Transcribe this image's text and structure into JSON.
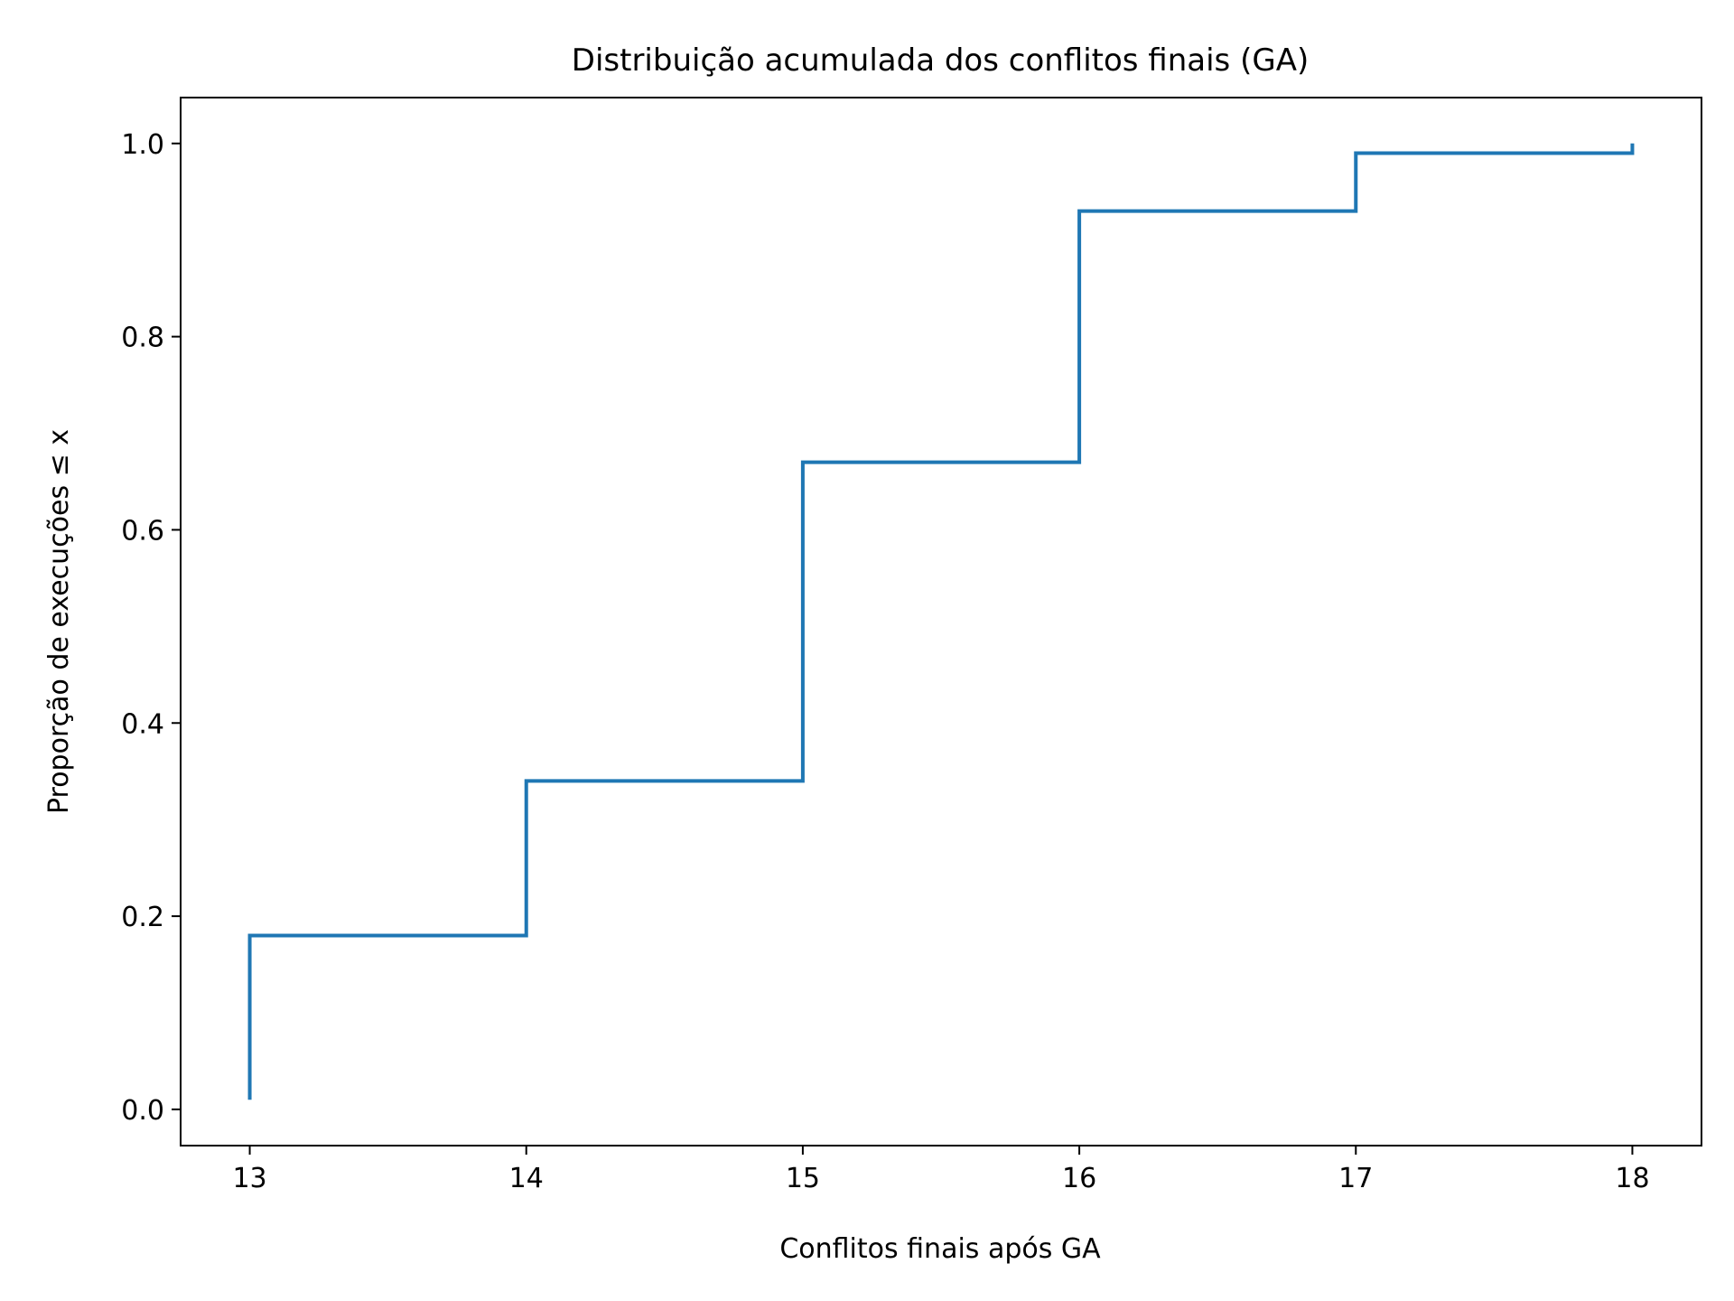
{
  "chart_data": {
    "type": "line",
    "drawstyle": "steps-post",
    "title": "Distribuição acumulada dos conflitos finais (GA)",
    "xlabel": "Conflitos finais após GA",
    "ylabel": "Proporção de execuções ≤ x",
    "xlim": [
      12.75,
      18.25
    ],
    "ylim": [
      -0.0375,
      1.0475
    ],
    "xticks": [
      13,
      14,
      15,
      16,
      17,
      18
    ],
    "xtick_labels": [
      "13",
      "14",
      "15",
      "16",
      "17",
      "18"
    ],
    "yticks": [
      0.0,
      0.2,
      0.4,
      0.6,
      0.8,
      1.0
    ],
    "ytick_labels": [
      "0.0",
      "0.2",
      "0.4",
      "0.6",
      "0.8",
      "1.0"
    ],
    "grid": false,
    "legend": "none",
    "series": [
      {
        "color": "#1f77b4",
        "x": [
          13,
          14,
          15,
          16,
          17,
          18
        ],
        "y": [
          0.18,
          0.34,
          0.67,
          0.93,
          0.99,
          1.0
        ],
        "start_y": 0.01
      }
    ]
  }
}
